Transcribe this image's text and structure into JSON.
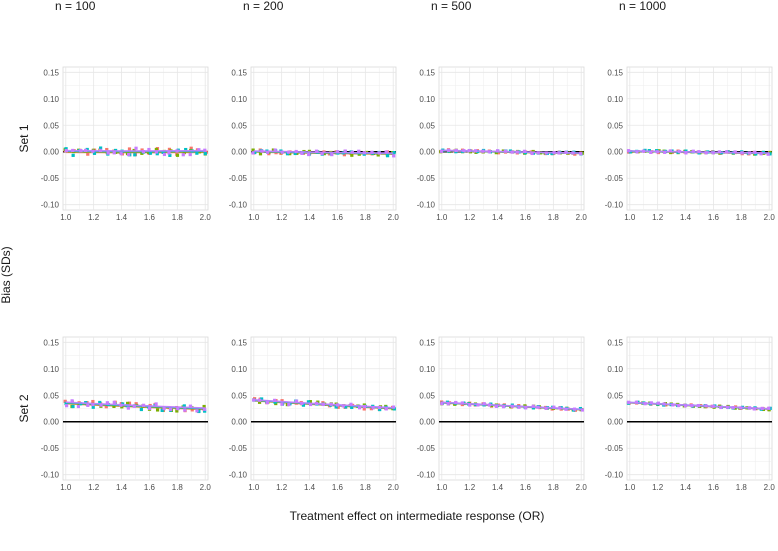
{
  "chart_data": {
    "type": "scatter",
    "layout": "faceted grid, 2 rows x 4 columns",
    "xlabel": "Treatment effect on intermediate response (OR)",
    "ylabel": "Bias (SDs)",
    "columns": [
      "n = 100",
      "n = 200",
      "n = 500",
      "n = 1000"
    ],
    "rows": [
      "Set 1",
      "Set 2"
    ],
    "xlim": [
      0.98,
      2.02
    ],
    "ylim": [
      -0.11,
      0.16
    ],
    "x_ticks": [
      "1.0",
      "1.2",
      "1.4",
      "1.6",
      "1.8",
      "2.0"
    ],
    "y_ticks": [
      "0.15",
      "0.10",
      "0.05",
      "0.00",
      "-0.05",
      "-0.10"
    ],
    "reference_line_y": 0,
    "grid": true,
    "legend": "none",
    "series_colors": [
      "#f8766d",
      "#7cae00",
      "#00bfc4",
      "#c77cff"
    ],
    "x_values": [
      1.0,
      1.05,
      1.1,
      1.15,
      1.2,
      1.25,
      1.3,
      1.35,
      1.4,
      1.45,
      1.5,
      1.55,
      1.6,
      1.65,
      1.7,
      1.75,
      1.8,
      1.85,
      1.9,
      1.95,
      2.0
    ],
    "panels": [
      {
        "row": "Set 1",
        "col": "n = 100",
        "trend": [
          0.0,
          0.0
        ],
        "spread": 0.007
      },
      {
        "row": "Set 1",
        "col": "n = 200",
        "trend": [
          0.0,
          -0.004
        ],
        "spread": 0.004
      },
      {
        "row": "Set 1",
        "col": "n = 500",
        "trend": [
          0.002,
          -0.003
        ],
        "spread": 0.002
      },
      {
        "row": "Set 1",
        "col": "n = 1000",
        "trend": [
          0.001,
          -0.003
        ],
        "spread": 0.002
      },
      {
        "row": "Set 2",
        "col": "n = 100",
        "trend": [
          0.035,
          0.024
        ],
        "spread": 0.006
      },
      {
        "row": "Set 2",
        "col": "n = 200",
        "trend": [
          0.04,
          0.025
        ],
        "spread": 0.004
      },
      {
        "row": "Set 2",
        "col": "n = 500",
        "trend": [
          0.036,
          0.023
        ],
        "spread": 0.002
      },
      {
        "row": "Set 2",
        "col": "n = 1000",
        "trend": [
          0.036,
          0.024
        ],
        "spread": 0.0015
      }
    ]
  }
}
